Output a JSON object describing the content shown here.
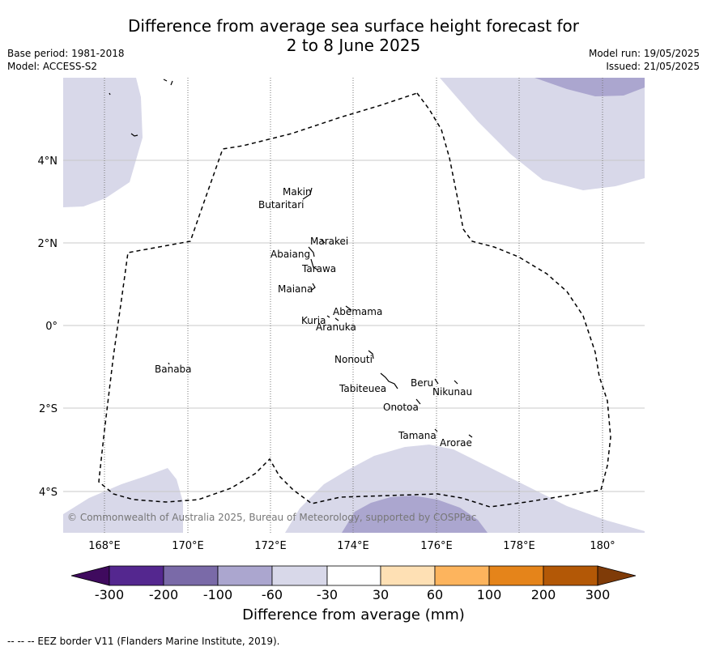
{
  "title": {
    "line1": "Difference from average sea surface height forecast for",
    "line2": "2 to 8 June 2025"
  },
  "meta_left": {
    "base_period": "Base period: 1981-2018",
    "model": "Model: ACCESS-S2"
  },
  "meta_right": {
    "model_run": "Model run: 19/05/2025",
    "issued": "Issued: 21/05/2025"
  },
  "map": {
    "lat_labels": [
      "4°N",
      "2°N",
      "0°",
      "2°S",
      "4°S"
    ],
    "lon_labels": [
      "168°E",
      "170°E",
      "172°E",
      "174°E",
      "176°E",
      "178°E",
      "180°"
    ],
    "islands": [
      "Makin",
      "Butaritari",
      "Marakei",
      "Abaiang",
      "Tarawa",
      "Maiana",
      "Abemama",
      "Kuria",
      "Aranuka",
      "Nonouti",
      "Banaba",
      "Beru",
      "Nikunau",
      "Tabiteuea",
      "Onotoa",
      "Tamana",
      "Arorae"
    ],
    "copyright": "© Commonwealth of Australia 2025, Bureau of Meteorology, supported by COSPPac"
  },
  "colorbar": {
    "tick_labels": [
      "-300",
      "-200",
      "-100",
      "-60",
      "-30",
      "30",
      "60",
      "100",
      "200",
      "300"
    ],
    "colors": {
      "lt_-300": "#3f0a5e",
      "-300_-200": "#54278f",
      "-200_-100": "#7a6aa8",
      "-100_-60": "#aba6cf",
      "-60_-30": "#d8d8e9",
      "-30_30": "#ffffff",
      "30_60": "#fee0b4",
      "60_100": "#fdb45d",
      "100_200": "#e5841a",
      "200_300": "#b35806",
      "gt_300": "#7f3b08"
    },
    "title": "Difference from average (mm)"
  },
  "footnote": "--  --  -- EEZ border V11 (Flanders Marine Institute, 2019)."
}
